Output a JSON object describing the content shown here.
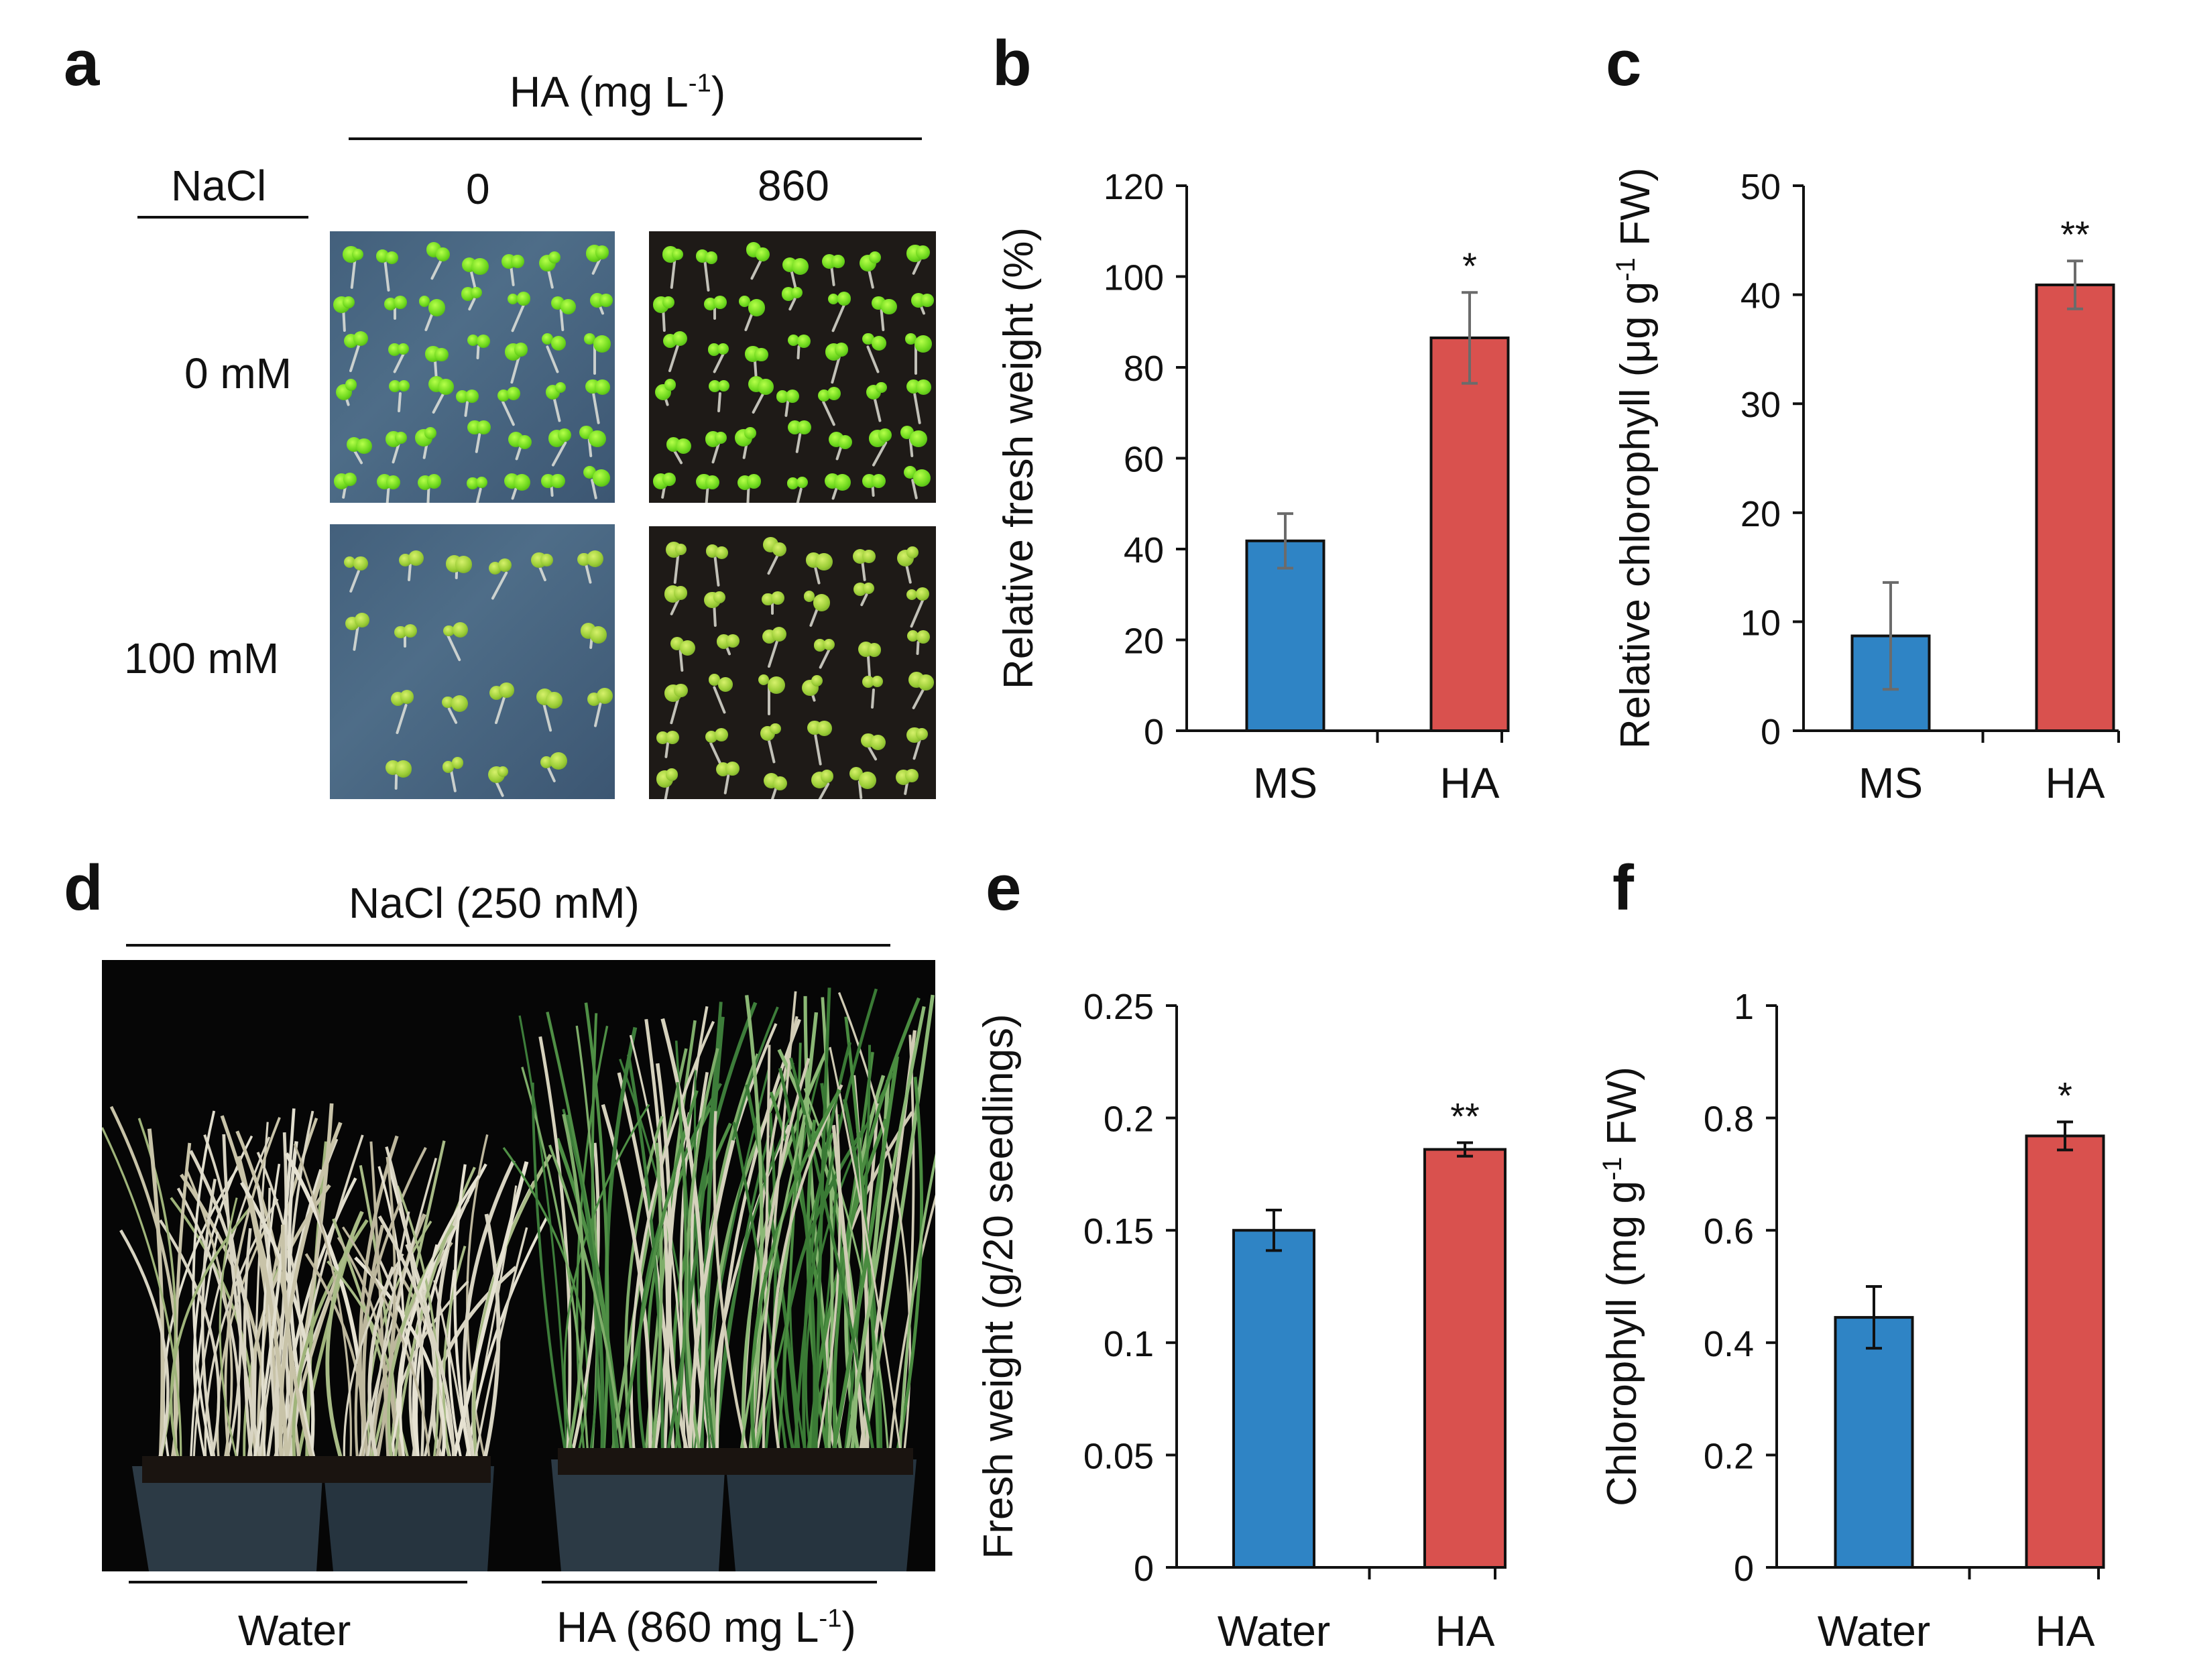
{
  "panels": {
    "a": "a",
    "b": "b",
    "c": "c",
    "d": "d",
    "e": "e",
    "f": "f"
  },
  "panel_a": {
    "ha_header": "HA (mg L",
    "ha_header_sup": "-1",
    "ha_header_end": ")",
    "nacl_header": "NaCl",
    "col0": "0",
    "col1": "860",
    "row0": "0 mM",
    "row1": "100 mM"
  },
  "panel_d": {
    "header": "NaCl (250 mM)",
    "left_label": "Water",
    "right_label": "HA (860 mg L",
    "right_label_sup": "-1",
    "right_label_end": ")"
  },
  "colors": {
    "blue_bar": "#2f84c5",
    "red_bar": "#d9514e",
    "error": "#6b6b6b",
    "error_dark": "#111111"
  },
  "chart_data": [
    {
      "id": "b",
      "type": "bar",
      "categories": [
        "MS",
        "HA"
      ],
      "values": [
        41.8,
        86.5
      ],
      "errors": [
        6,
        10
      ],
      "significance": [
        "",
        "*"
      ],
      "ylabel": "Relative fresh weight (%)",
      "ylim": [
        0,
        120
      ],
      "yticks": [
        0,
        20,
        40,
        60,
        80,
        100,
        120
      ],
      "ytick_labels": [
        "0",
        "20",
        "40",
        "60",
        "80",
        "100",
        "120"
      ]
    },
    {
      "id": "c",
      "type": "bar",
      "categories": [
        "MS",
        "HA"
      ],
      "values": [
        8.7,
        40.9
      ],
      "errors": [
        4.9,
        2.2
      ],
      "significance": [
        "",
        "**"
      ],
      "ylabel": "Relative chlorophyll (μg g",
      "ylabel_sup": "-1",
      "ylabel_end": " FW)",
      "ylim": [
        0,
        50
      ],
      "yticks": [
        0,
        10,
        20,
        30,
        40,
        50
      ],
      "ytick_labels": [
        "0",
        "10",
        "20",
        "30",
        "40",
        "50"
      ]
    },
    {
      "id": "e",
      "type": "bar",
      "categories": [
        "Water",
        "HA"
      ],
      "values": [
        0.15,
        0.186
      ],
      "errors": [
        0.009,
        0.003
      ],
      "significance": [
        "",
        "**"
      ],
      "ylabel": "Fresh weight (g/20 seedlings)",
      "ylim": [
        0,
        0.25
      ],
      "yticks": [
        0,
        0.05,
        0.1,
        0.15,
        0.2,
        0.25
      ],
      "ytick_labels": [
        "0",
        "0.05",
        "0.1",
        "0.15",
        "0.2",
        "0.25"
      ]
    },
    {
      "id": "f",
      "type": "bar",
      "categories": [
        "Water",
        "HA"
      ],
      "values": [
        0.445,
        0.768
      ],
      "errors": [
        0.055,
        0.025
      ],
      "significance": [
        "",
        "*"
      ],
      "ylabel": "Chlorophyll (mg g",
      "ylabel_sup": "-1",
      "ylabel_end": " FW)",
      "ylim": [
        0,
        1
      ],
      "yticks": [
        0,
        0.2,
        0.4,
        0.6,
        0.8,
        1
      ],
      "ytick_labels": [
        "0",
        "0.2",
        "0.4",
        "0.6",
        "0.8",
        "1"
      ]
    }
  ]
}
